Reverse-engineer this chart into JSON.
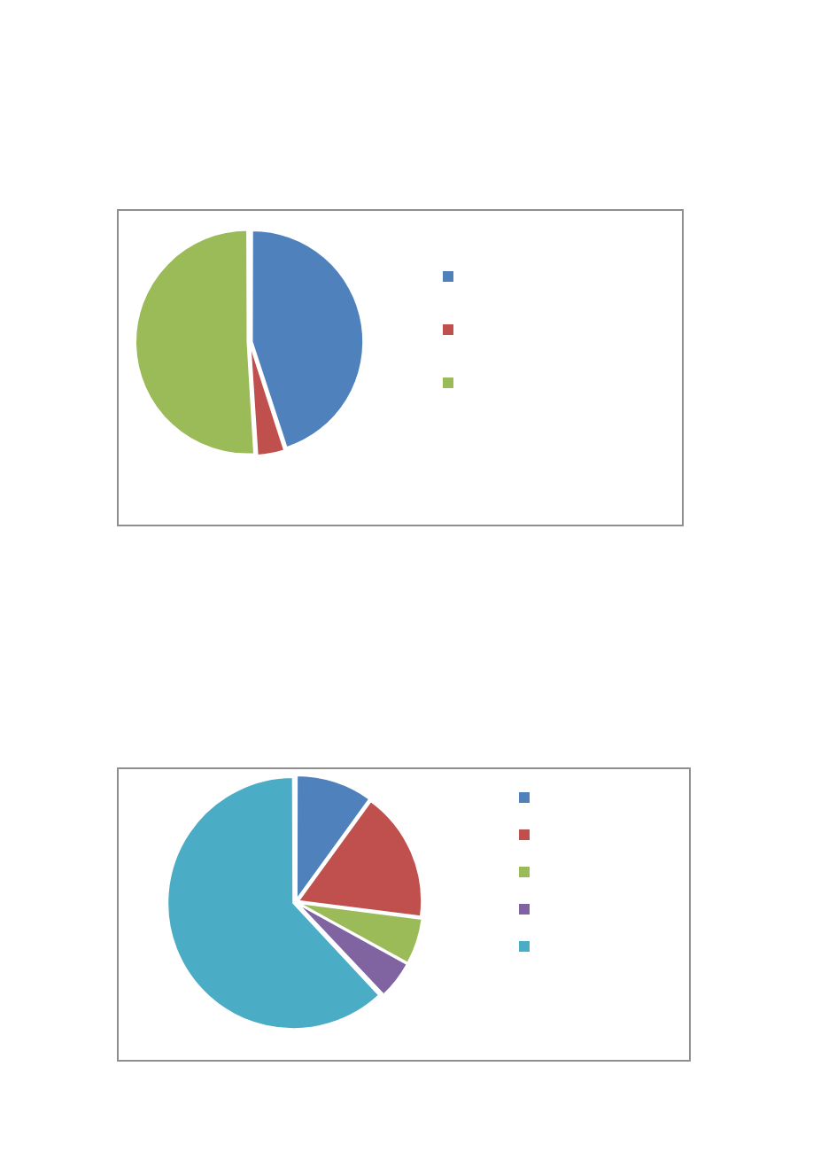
{
  "chart_data": [
    {
      "type": "pie",
      "categories": [
        null,
        null,
        null
      ],
      "values": [
        45,
        4,
        51
      ],
      "colors": [
        "#4f81bd",
        "#c0504d",
        "#9bbb59"
      ]
    },
    {
      "type": "pie",
      "categories": [
        null,
        null,
        null,
        null,
        null
      ],
      "values": [
        10,
        17,
        6,
        5,
        62
      ],
      "colors": [
        "#4f81bd",
        "#c0504d",
        "#9bbb59",
        "#8064a2",
        "#4bacc6"
      ]
    }
  ]
}
